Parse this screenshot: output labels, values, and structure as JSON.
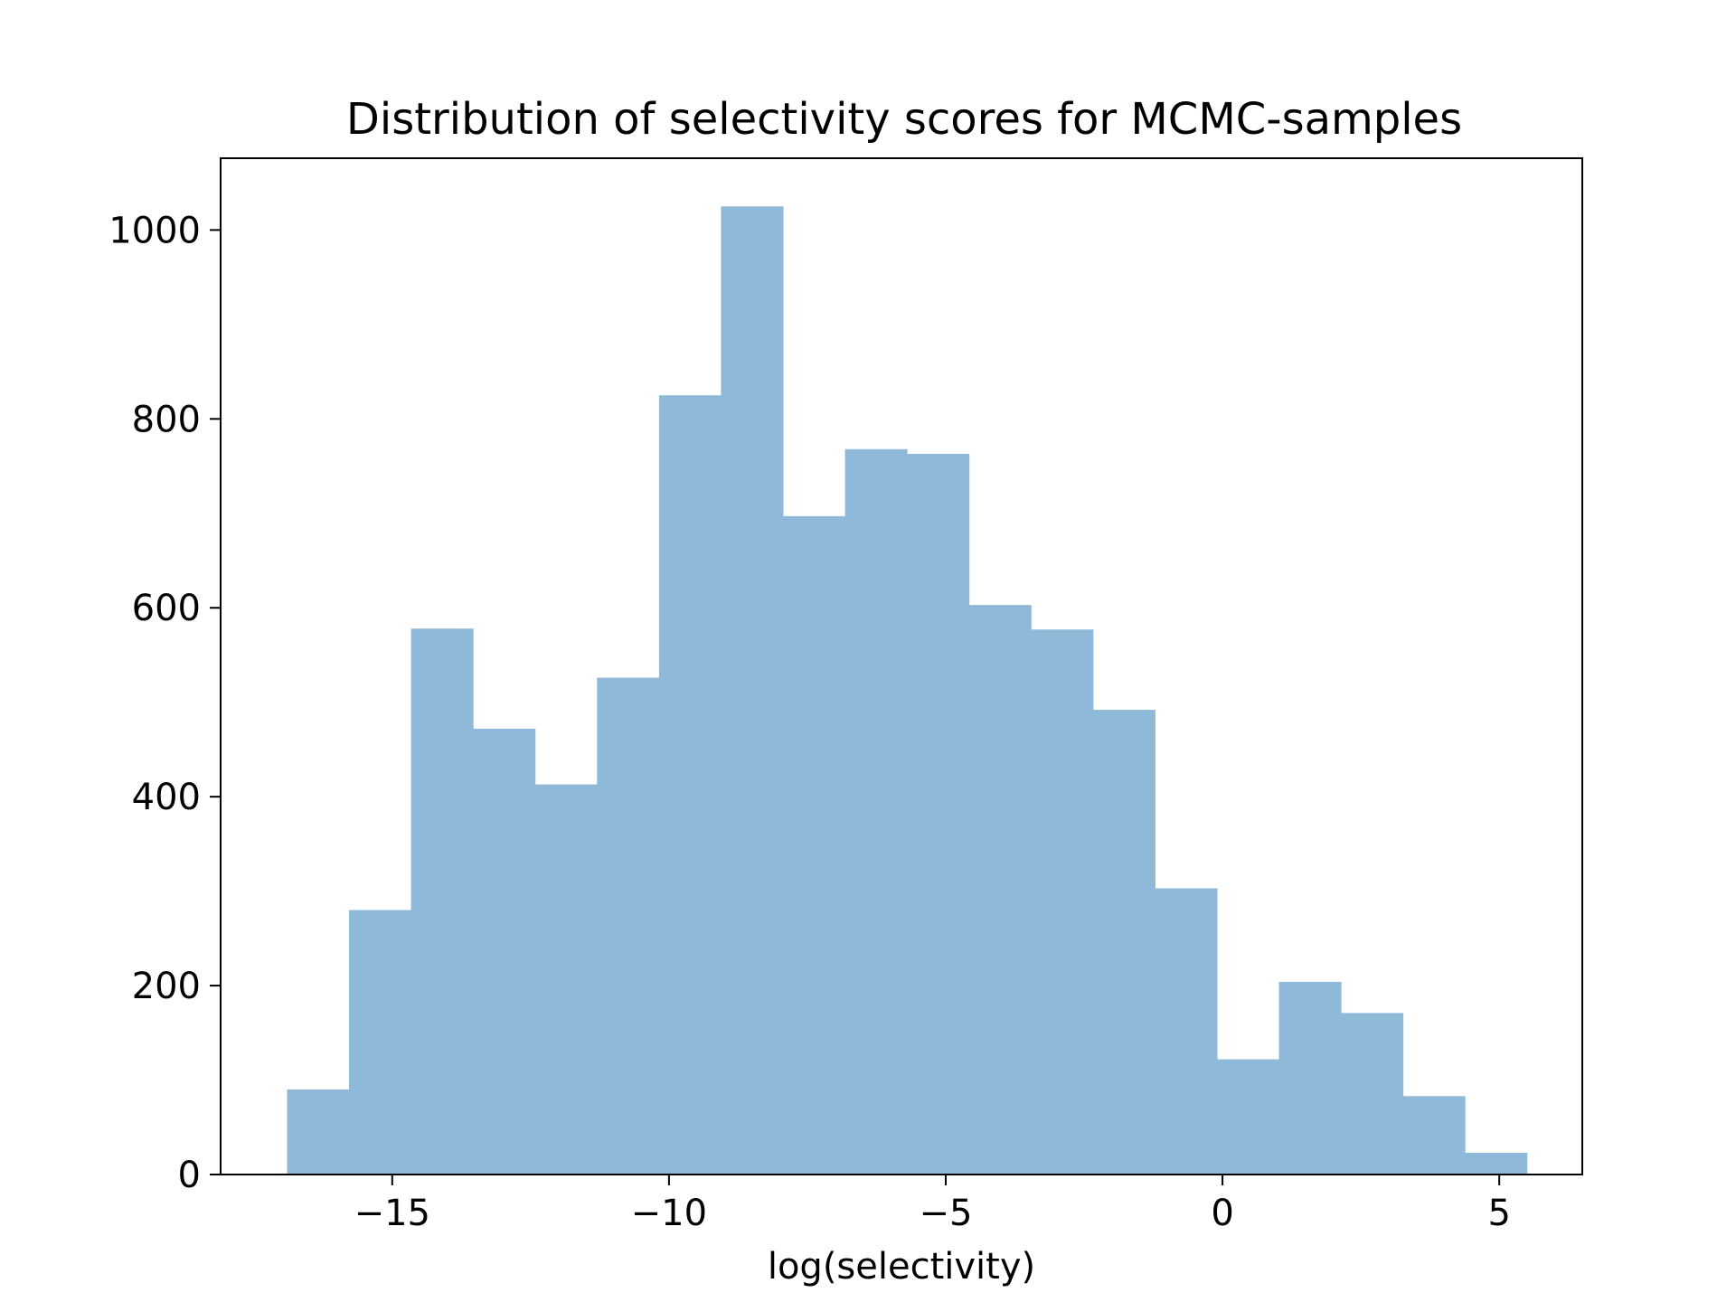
{
  "chart_data": {
    "type": "bar",
    "title": "Distribution of selectivity scores for MCMC-samples",
    "xlabel": "log(selectivity)",
    "ylabel": "",
    "bin_edges": [
      -16.9,
      -15.78,
      -14.66,
      -13.54,
      -12.42,
      -11.3,
      -10.18,
      -9.06,
      -7.94,
      -6.82,
      -5.7,
      -4.58,
      -3.46,
      -2.34,
      -1.22,
      -0.1,
      1.02,
      2.14,
      3.26,
      4.38,
      5.5
    ],
    "values": [
      90,
      280,
      578,
      472,
      413,
      526,
      825,
      1025,
      697,
      768,
      763,
      603,
      577,
      492,
      303,
      122,
      204,
      171,
      83,
      23
    ],
    "xlim": [
      -18.1,
      6.5
    ],
    "ylim": [
      0,
      1076
    ],
    "x_ticks": [
      -15,
      -10,
      -5,
      0,
      5
    ],
    "x_tick_labels": [
      "−15",
      "−10",
      "−5",
      "0",
      "5"
    ],
    "y_ticks": [
      0,
      200,
      400,
      600,
      800,
      1000
    ],
    "y_tick_labels": [
      "0",
      "200",
      "400",
      "600",
      "800",
      "1000"
    ],
    "bar_color": "#8fb9d9",
    "grid": false,
    "legend": false
  }
}
